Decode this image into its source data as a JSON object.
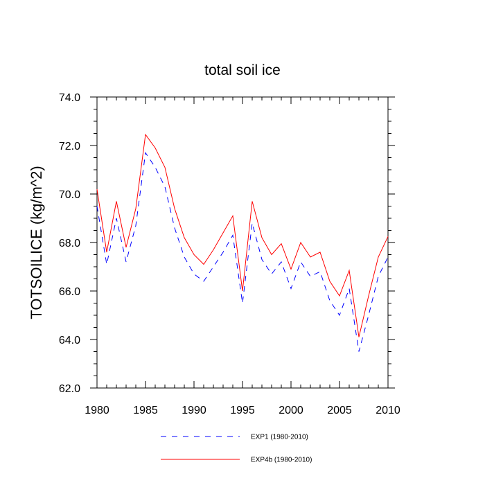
{
  "chart_data": {
    "type": "line",
    "title": "total soil ice",
    "xlabel": "",
    "ylabel": "TOTSOILICE  (kg/m^2)",
    "xlim": [
      1980,
      2010
    ],
    "ylim": [
      62.0,
      74.0
    ],
    "xticks": [
      1980,
      1985,
      1990,
      1995,
      2000,
      2005,
      2010
    ],
    "xtick_labels": [
      "1980",
      "1985",
      "1990",
      "1995",
      "2000",
      "2005",
      "2010"
    ],
    "yticks": [
      62.0,
      64.0,
      66.0,
      68.0,
      70.0,
      72.0,
      74.0
    ],
    "ytick_labels": [
      "62.0",
      "64.0",
      "66.0",
      "68.0",
      "70.0",
      "72.0",
      "74.0"
    ],
    "grid": false,
    "legend_position": "bottom",
    "x": [
      1980,
      1981,
      1982,
      1983,
      1984,
      1985,
      1986,
      1987,
      1988,
      1989,
      1990,
      1991,
      1992,
      1993,
      1994,
      1995,
      1996,
      1997,
      1998,
      1999,
      2000,
      2001,
      2002,
      2003,
      2004,
      2005,
      2006,
      2007,
      2008,
      2009,
      2010
    ],
    "series": [
      {
        "name": "EXP1 (1980-2010)",
        "color": "#0000ff",
        "style": "dashed",
        "values": [
          69.5,
          67.1,
          69.0,
          67.2,
          68.7,
          71.7,
          71.1,
          70.3,
          68.6,
          67.4,
          66.7,
          66.4,
          67.0,
          67.6,
          68.3,
          65.5,
          68.8,
          67.3,
          66.7,
          67.2,
          66.1,
          67.2,
          66.6,
          66.8,
          65.6,
          65.0,
          66.1,
          63.5,
          65.0,
          66.6,
          67.4
        ]
      },
      {
        "name": "EXP4b (1980-2010)",
        "color": "#ff0000",
        "style": "solid",
        "values": [
          70.2,
          67.6,
          69.7,
          67.8,
          69.4,
          72.45,
          71.9,
          71.1,
          69.4,
          68.2,
          67.5,
          67.1,
          67.7,
          68.4,
          69.1,
          66.0,
          69.7,
          68.2,
          67.5,
          67.95,
          66.9,
          68.0,
          67.4,
          67.6,
          66.4,
          65.8,
          66.85,
          64.1,
          65.8,
          67.4,
          68.25
        ]
      }
    ]
  }
}
